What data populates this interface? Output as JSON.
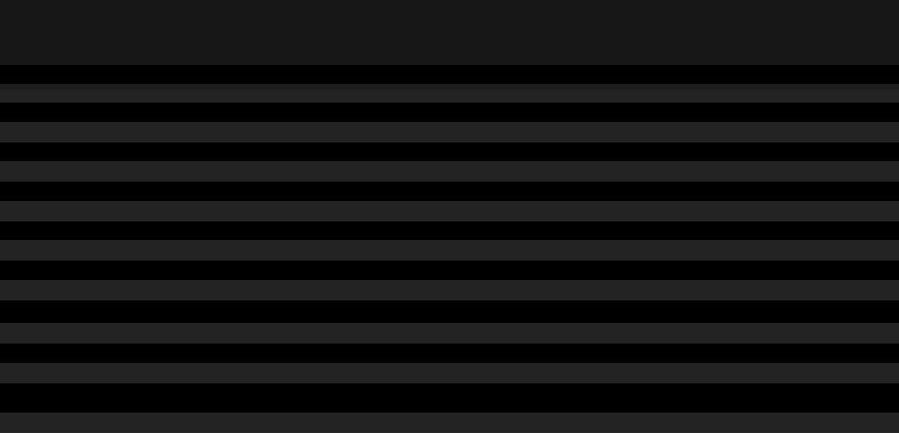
{
  "theme": {
    "header_background": "#171717",
    "page_background": "#000000",
    "row_alt_background": "#232323",
    "subheader_background": "#1c1c1c"
  }
}
